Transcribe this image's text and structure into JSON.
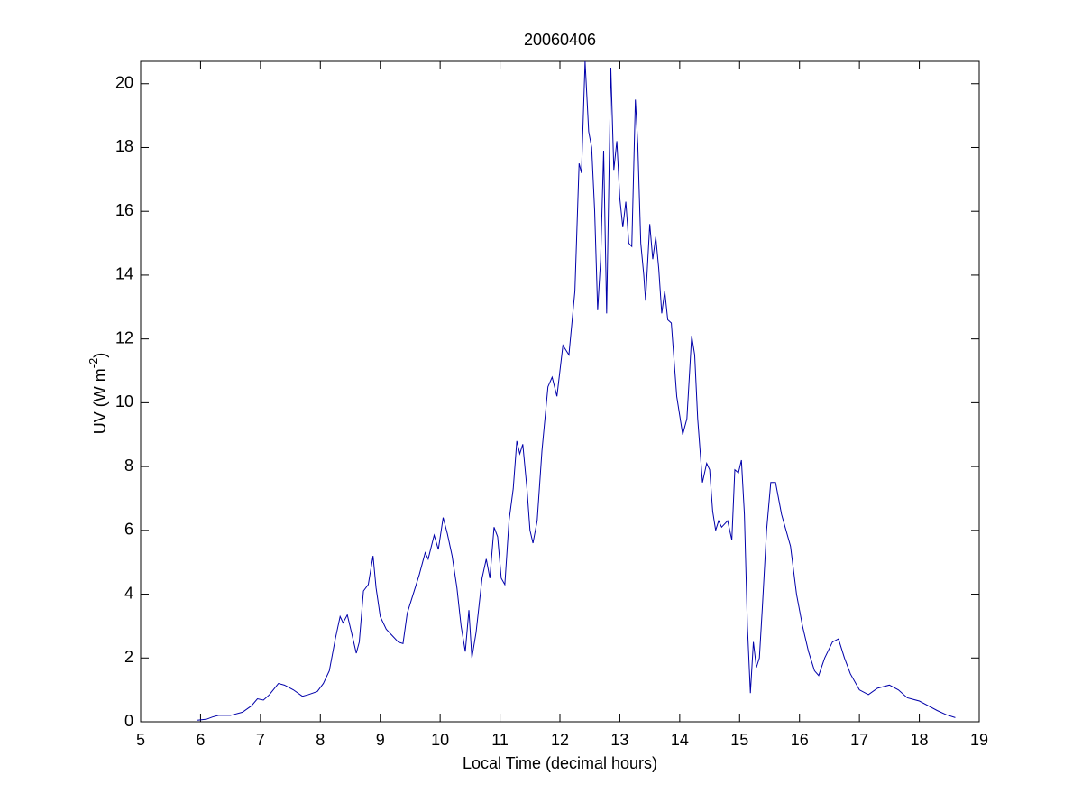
{
  "chart_data": {
    "type": "line",
    "title": "20060406",
    "x_label": "Local Time (decimal hours)",
    "y_label": [
      "UV (W m",
      "-2",
      ")"
    ],
    "xlim": [
      5,
      19
    ],
    "ylim": [
      0,
      20.7
    ],
    "xticks": [
      5,
      6,
      7,
      8,
      9,
      10,
      11,
      12,
      13,
      14,
      15,
      16,
      17,
      18,
      19
    ],
    "yticks": [
      0,
      2,
      4,
      6,
      8,
      10,
      12,
      14,
      16,
      18,
      20
    ],
    "grid": false,
    "series": [
      {
        "color": "#0000aa",
        "x": [
          5.95,
          6.1,
          6.2,
          6.3,
          6.5,
          6.7,
          6.85,
          6.95,
          7.05,
          7.15,
          7.3,
          7.4,
          7.55,
          7.7,
          7.8,
          7.95,
          8.05,
          8.15,
          8.25,
          8.33,
          8.38,
          8.45,
          8.52,
          8.6,
          8.65,
          8.72,
          8.8,
          8.88,
          8.93,
          9.0,
          9.1,
          9.2,
          9.3,
          9.38,
          9.45,
          9.55,
          9.65,
          9.75,
          9.8,
          9.9,
          9.97,
          10.05,
          10.12,
          10.2,
          10.28,
          10.35,
          10.42,
          10.48,
          10.53,
          10.6,
          10.7,
          10.77,
          10.83,
          10.9,
          10.96,
          11.02,
          11.08,
          11.15,
          11.22,
          11.28,
          11.33,
          11.38,
          11.45,
          11.5,
          11.55,
          11.62,
          11.7,
          11.8,
          11.87,
          11.95,
          12.05,
          12.15,
          12.25,
          12.32,
          12.36,
          12.42,
          12.48,
          12.53,
          12.58,
          12.63,
          12.68,
          12.73,
          12.78,
          12.85,
          12.9,
          12.95,
          13.0,
          13.05,
          13.1,
          13.15,
          13.2,
          13.26,
          13.3,
          13.35,
          13.4,
          13.43,
          13.5,
          13.55,
          13.6,
          13.65,
          13.7,
          13.75,
          13.8,
          13.86,
          13.95,
          14.05,
          14.12,
          14.2,
          14.25,
          14.3,
          14.38,
          14.45,
          14.5,
          14.55,
          14.6,
          14.65,
          14.7,
          14.8,
          14.87,
          14.92,
          14.98,
          15.03,
          15.08,
          15.13,
          15.18,
          15.23,
          15.28,
          15.33,
          15.38,
          15.45,
          15.52,
          15.6,
          15.7,
          15.85,
          15.95,
          16.05,
          16.15,
          16.25,
          16.32,
          16.42,
          16.55,
          16.65,
          16.75,
          16.85,
          17.0,
          17.15,
          17.3,
          17.5,
          17.65,
          17.8,
          18.0,
          18.15,
          18.3,
          18.45,
          18.6
        ],
        "values": [
          0.05,
          0.08,
          0.15,
          0.2,
          0.2,
          0.3,
          0.5,
          0.72,
          0.68,
          0.85,
          1.2,
          1.15,
          1.0,
          0.8,
          0.85,
          0.95,
          1.2,
          1.6,
          2.6,
          3.3,
          3.1,
          3.35,
          2.8,
          2.15,
          2.5,
          4.1,
          4.3,
          5.2,
          4.2,
          3.3,
          2.9,
          2.7,
          2.5,
          2.45,
          3.4,
          4.0,
          4.6,
          5.3,
          5.1,
          5.85,
          5.4,
          6.4,
          5.9,
          5.2,
          4.2,
          3.0,
          2.2,
          3.5,
          2.0,
          2.8,
          4.5,
          5.1,
          4.5,
          6.1,
          5.8,
          4.5,
          4.3,
          6.3,
          7.3,
          8.8,
          8.4,
          8.7,
          7.3,
          6.0,
          5.6,
          6.3,
          8.5,
          10.5,
          10.8,
          10.2,
          11.8,
          11.5,
          13.5,
          17.5,
          17.2,
          20.7,
          18.5,
          18.0,
          16.0,
          12.9,
          14.5,
          17.9,
          12.8,
          20.5,
          17.3,
          18.2,
          16.4,
          15.5,
          16.3,
          15.0,
          14.9,
          19.5,
          18.1,
          15.0,
          14.0,
          13.2,
          15.6,
          14.5,
          15.2,
          14.2,
          12.8,
          13.5,
          12.6,
          12.5,
          10.2,
          9.0,
          9.5,
          12.1,
          11.5,
          9.5,
          7.5,
          8.1,
          7.9,
          6.6,
          6.0,
          6.3,
          6.1,
          6.3,
          5.7,
          7.9,
          7.8,
          8.2,
          6.5,
          3.0,
          0.9,
          2.5,
          1.7,
          2.0,
          3.6,
          6.0,
          7.5,
          7.5,
          6.5,
          5.5,
          4.0,
          3.0,
          2.2,
          1.6,
          1.45,
          2.0,
          2.5,
          2.6,
          2.0,
          1.5,
          1.0,
          0.85,
          1.05,
          1.15,
          1.0,
          0.75,
          0.65,
          0.5,
          0.35,
          0.22,
          0.13
        ]
      }
    ]
  }
}
